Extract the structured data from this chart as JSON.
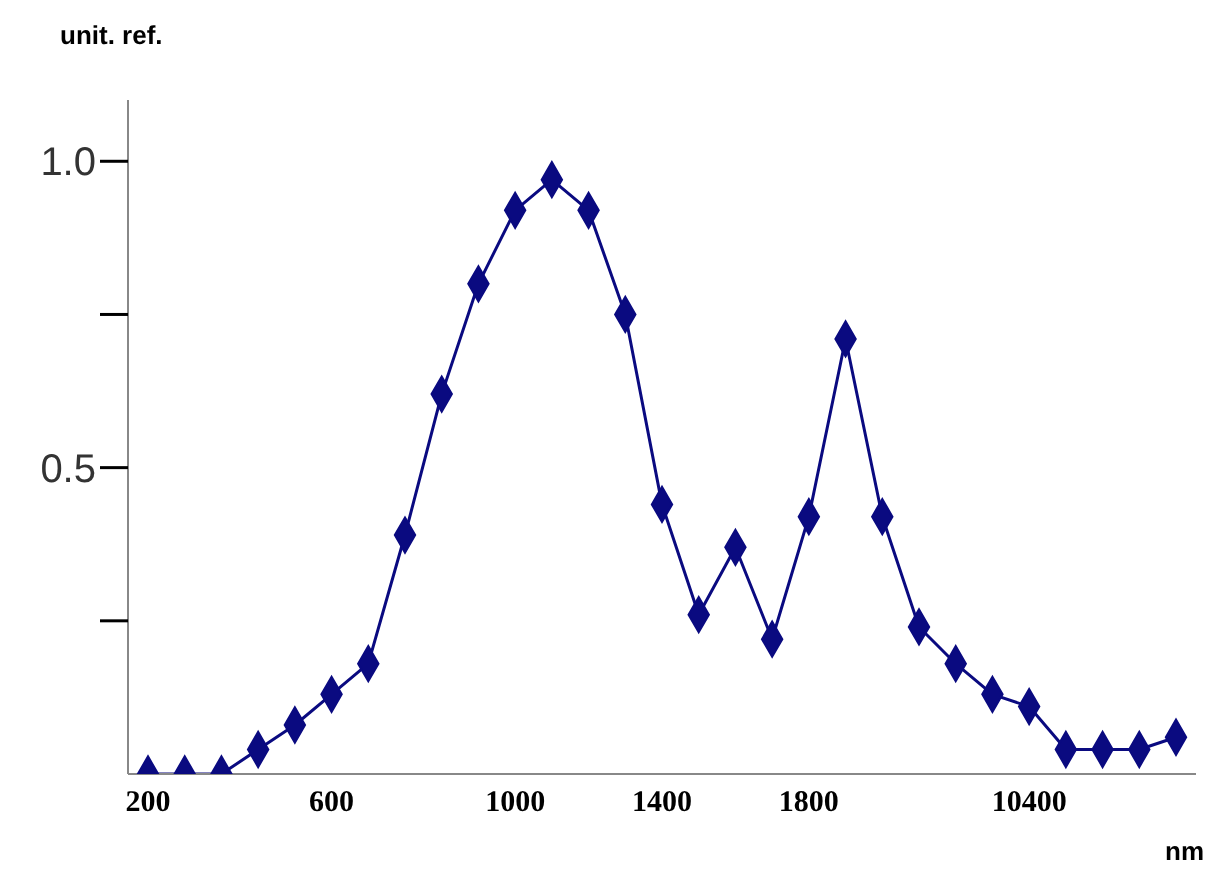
{
  "chart_data": {
    "type": "line",
    "ylabel": "unit. ref.",
    "xlabel": "nm",
    "categories": [
      "200",
      null,
      null,
      null,
      null,
      "600",
      null,
      null,
      null,
      null,
      "1000",
      null,
      null,
      null,
      "1400",
      null,
      null,
      null,
      "1800",
      null,
      null,
      null,
      null,
      null,
      "10400",
      null,
      null,
      null,
      null
    ],
    "series": [
      {
        "color": "#0a0a80",
        "values": [
          0,
          0,
          0,
          0.04,
          0.08,
          0.13,
          0.18,
          0.39,
          0.62,
          0.8,
          0.92,
          0.97,
          0.92,
          0.75,
          0.44,
          0.26,
          0.37,
          0.22,
          0.42,
          0.71,
          0.42,
          0.24,
          0.18,
          0.13,
          0.11,
          0.04,
          0.04,
          0.04,
          0.06
        ]
      }
    ],
    "ylim": [
      0,
      1.1
    ],
    "yticks": [
      {
        "value": 0.25,
        "label": null
      },
      {
        "value": 0.5,
        "label": "0.5"
      },
      {
        "value": 0.75,
        "label": null
      },
      {
        "value": 1,
        "label": "1.0"
      }
    ],
    "marker": "diamond",
    "line_style": "solid",
    "grid": false,
    "legend": false
  }
}
